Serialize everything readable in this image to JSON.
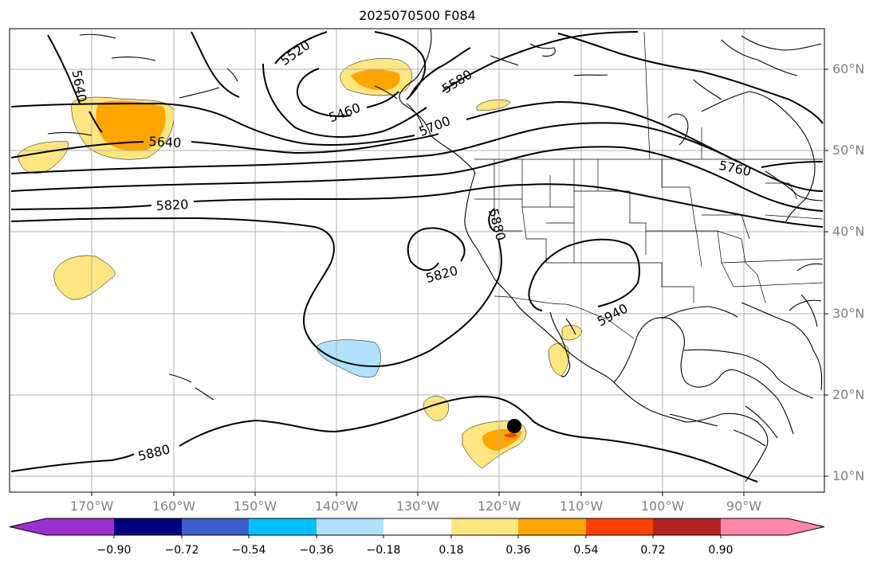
{
  "title": "2025070500 F084",
  "lat_labels": [
    "60°N",
    "50°N",
    "40°N",
    "30°N",
    "20°N",
    "10°N"
  ],
  "lon_labels": [
    "170°W",
    "160°W",
    "150°W",
    "140°W",
    "130°W",
    "120°W",
    "110°W",
    "100°W",
    "90°W"
  ],
  "contour_labels": [
    "5520",
    "5580",
    "5460",
    "5700",
    "5640",
    "5640",
    "5760",
    "5820",
    "5880",
    "5820",
    "5940",
    "5880"
  ],
  "colorbar": {
    "ticks": [
      "−0.90",
      "−0.72",
      "−0.54",
      "−0.36",
      "−0.18",
      "0.18",
      "0.36",
      "0.54",
      "0.72",
      "0.90"
    ],
    "colors": [
      "#9b30d0",
      "#000080",
      "#3a5fcd",
      "#00bfff",
      "#b0e2ff",
      "#ffffff",
      "#ffe680",
      "#ffa500",
      "#ff4000",
      "#b22222",
      "#ff88aa"
    ]
  },
  "colors": {
    "contour": "#000000",
    "grid": "#b0b0b0",
    "coast": "#000000",
    "marker": "#000000"
  }
}
